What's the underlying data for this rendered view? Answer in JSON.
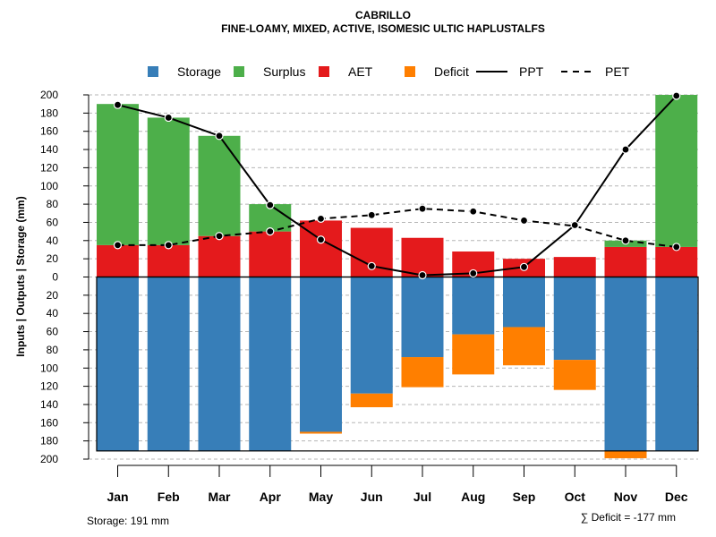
{
  "chart_data": {
    "type": "bar",
    "title": "CABRILLO",
    "subtitle": "FINE-LOAMY, MIXED, ACTIVE, ISOMESIC ULTIC HAPLUSTALFS",
    "ylabel": "Inputs | Outputs | Storage     (mm)",
    "ylim": [
      -200,
      200
    ],
    "y_ticks": [
      200,
      180,
      160,
      140,
      120,
      100,
      80,
      60,
      40,
      20,
      0,
      20,
      40,
      60,
      80,
      100,
      120,
      140,
      160,
      180,
      200
    ],
    "y_tick_values": [
      200,
      180,
      160,
      140,
      120,
      100,
      80,
      60,
      40,
      20,
      0,
      -20,
      -40,
      -60,
      -80,
      -100,
      -120,
      -140,
      -160,
      -180,
      -200
    ],
    "categories": [
      "Jan",
      "Feb",
      "Mar",
      "Apr",
      "May",
      "Jun",
      "Jul",
      "Aug",
      "Sep",
      "Oct",
      "Nov",
      "Dec"
    ],
    "legend": [
      {
        "label": "Storage",
        "color": "#377EB8",
        "kind": "box"
      },
      {
        "label": "Surplus",
        "color": "#4DAF4A",
        "kind": "box"
      },
      {
        "label": "AET",
        "color": "#E41A1C",
        "kind": "box"
      },
      {
        "label": "Deficit",
        "color": "#FF7F00",
        "kind": "box"
      },
      {
        "label": "PPT",
        "color": "#000000",
        "kind": "solid"
      },
      {
        "label": "PET",
        "color": "#000000",
        "kind": "dashed"
      }
    ],
    "series": [
      {
        "name": "AET",
        "color": "#E41A1C",
        "values": [
          35,
          35,
          45,
          50,
          62,
          54,
          43,
          28,
          20,
          22,
          33,
          33
        ]
      },
      {
        "name": "Surplus",
        "color": "#4DAF4A",
        "values": [
          155,
          140,
          110,
          30,
          0,
          0,
          0,
          0,
          0,
          0,
          7,
          167
        ]
      },
      {
        "name": "Storage",
        "color": "#377EB8",
        "values": [
          191,
          191,
          191,
          191,
          170,
          128,
          88,
          63,
          55,
          91,
          191,
          191
        ]
      },
      {
        "name": "Deficit",
        "color": "#FF7F00",
        "values": [
          0,
          0,
          0,
          0,
          2,
          15,
          33,
          44,
          42,
          33,
          8,
          0
        ]
      },
      {
        "name": "PPT",
        "color": "#000000",
        "values": [
          189,
          175,
          155,
          79,
          41,
          12,
          2,
          4,
          11,
          57,
          140,
          199
        ]
      },
      {
        "name": "PET",
        "color": "#000000",
        "values": [
          35,
          35,
          45,
          50,
          64,
          68,
          75,
          72,
          62,
          56,
          40,
          33
        ]
      }
    ],
    "footer_left": "Storage: 191 mm",
    "footer_right": "∑ Deficit = -177 mm"
  }
}
